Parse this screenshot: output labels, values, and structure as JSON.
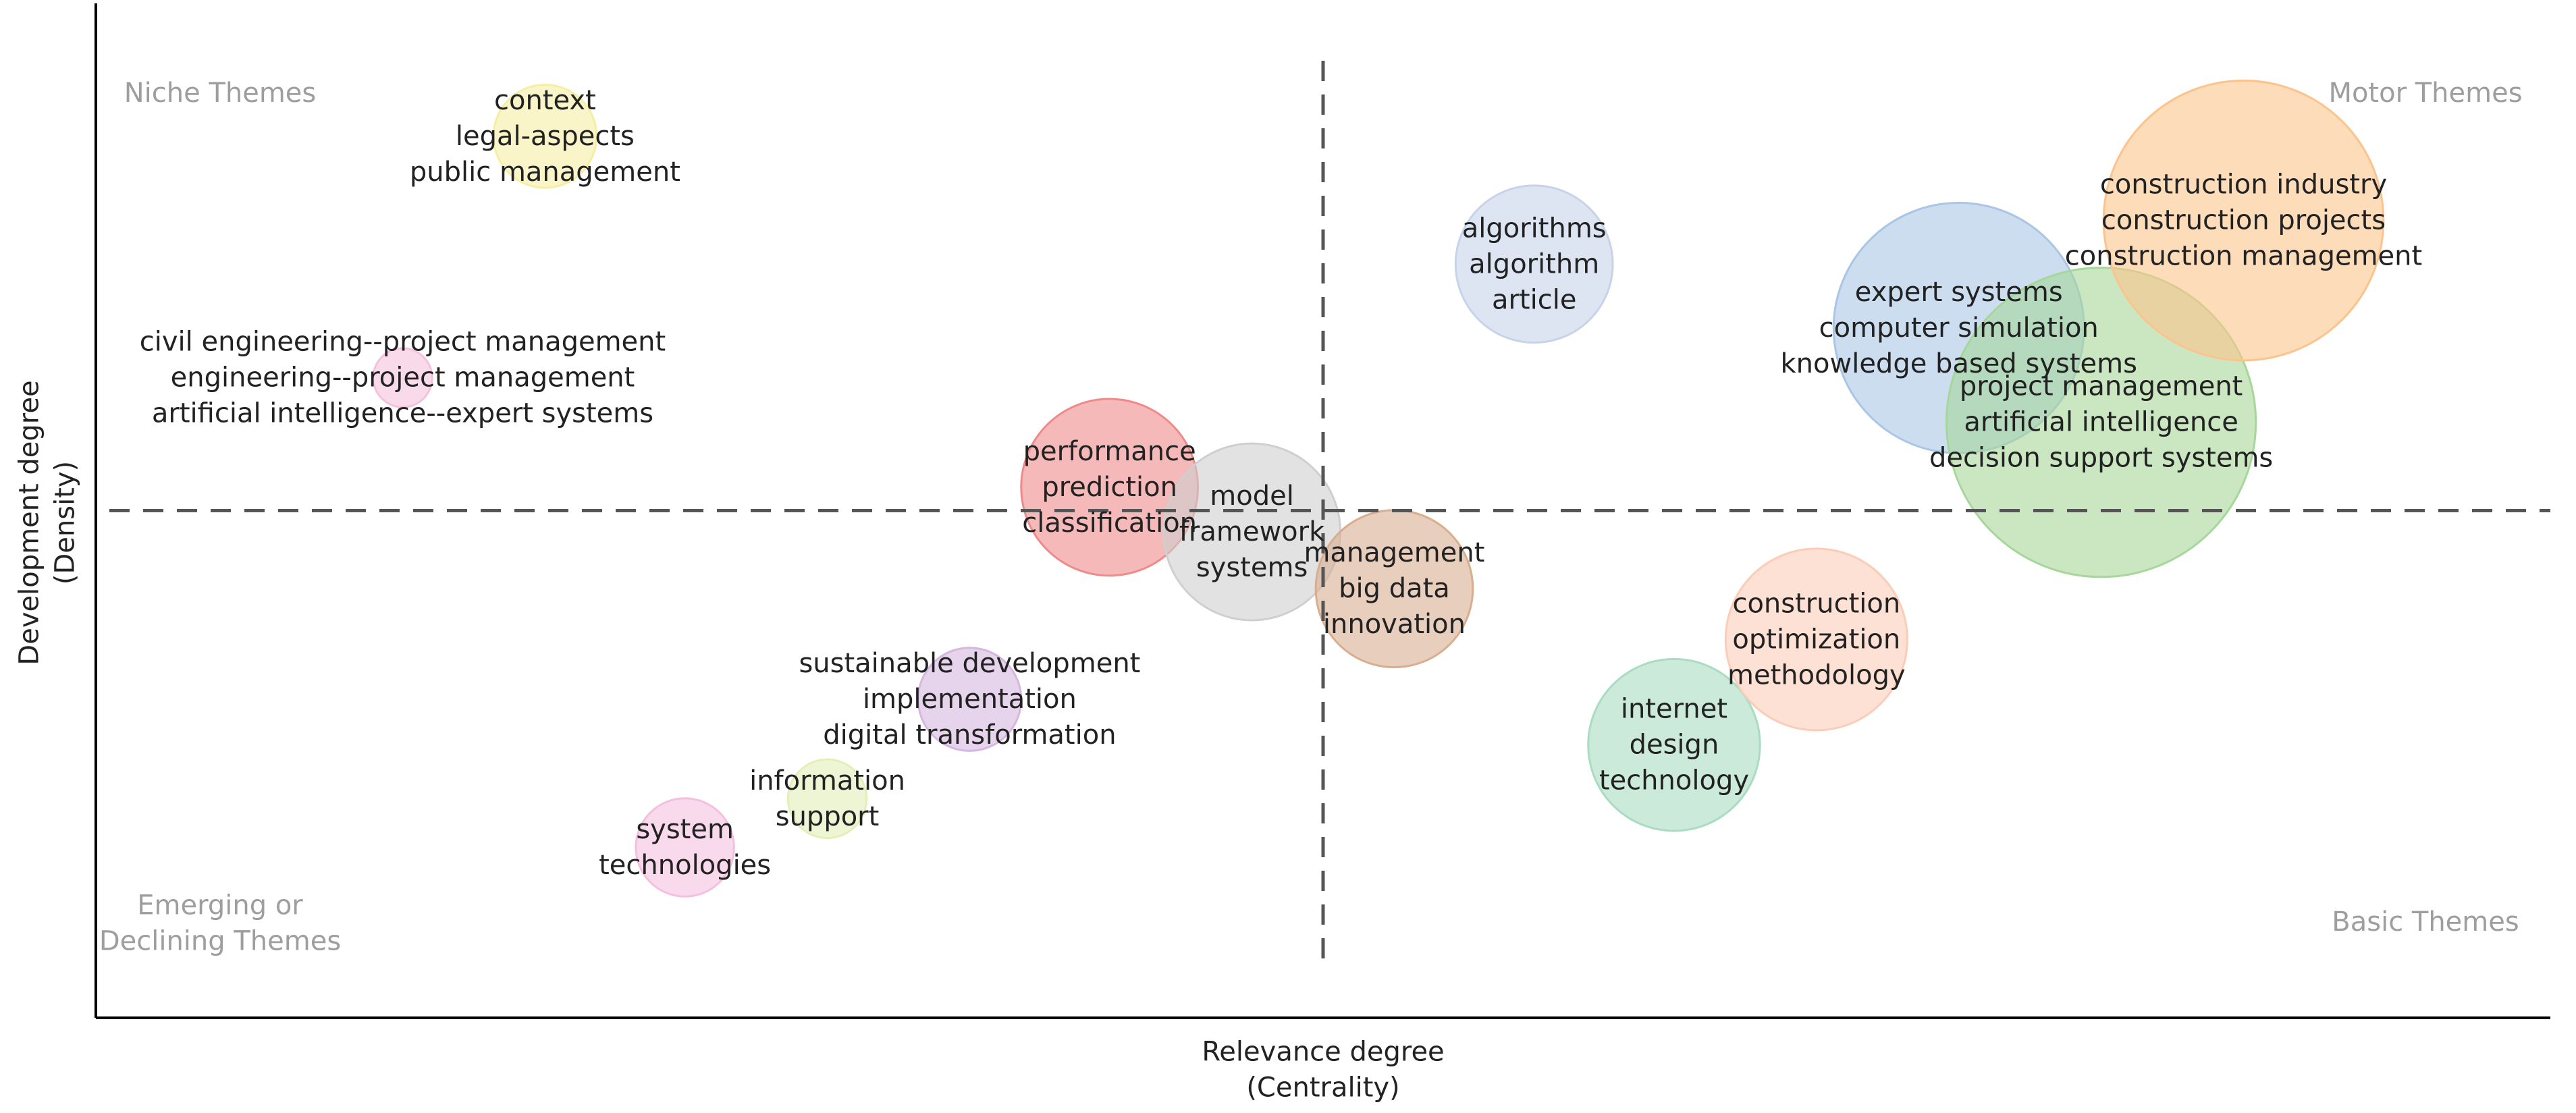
{
  "chart_data": {
    "type": "scatter",
    "variant": "thematic-map",
    "title": "",
    "xlabel": [
      "Relevance degree",
      "(Centrality)"
    ],
    "ylabel": [
      "Development degree",
      "(Density)"
    ],
    "xlim": [
      0,
      100
    ],
    "ylim": [
      0,
      100
    ],
    "center": {
      "x": 50,
      "y": 50
    },
    "quadrant_labels": {
      "top_left": [
        "Niche Themes"
      ],
      "top_right": [
        "Motor Themes"
      ],
      "bottom_left": [
        "Emerging or",
        "Declining Themes"
      ],
      "bottom_right": [
        "Basic Themes"
      ]
    },
    "clusters": [
      {
        "labels": [
          "context",
          "legal-aspects",
          "public management"
        ],
        "x": 18.3,
        "y": 86.9,
        "size": 2.1,
        "color": "#f5eea3"
      },
      {
        "labels": [
          "civil engineering--project management",
          "engineering--project management",
          "artificial intelligence--expert systems"
        ],
        "x": 12.5,
        "y": 63.1,
        "size": 1.2,
        "color": "#f4c2dd"
      },
      {
        "labels": [
          "performance",
          "prediction",
          "classification"
        ],
        "x": 41.3,
        "y": 52.3,
        "size": 3.6,
        "color": "#ef8a8a"
      },
      {
        "labels": [
          "model",
          "framework",
          "systems"
        ],
        "x": 47.1,
        "y": 47.9,
        "size": 3.6,
        "color": "#cfcfcf"
      },
      {
        "labels": [
          "management",
          "big data",
          "innovation"
        ],
        "x": 52.9,
        "y": 42.3,
        "size": 3.2,
        "color": "#d9ae8f"
      },
      {
        "labels": [
          "algorithms",
          "algorithm",
          "article"
        ],
        "x": 58.6,
        "y": 74.3,
        "size": 3.2,
        "color": "#c8d3ea"
      },
      {
        "labels": [
          "sustainable development",
          "implementation",
          "digital transformation"
        ],
        "x": 35.6,
        "y": 31.4,
        "size": 2.1,
        "color": "#d6b7e0"
      },
      {
        "labels": [
          "information",
          "support"
        ],
        "x": 29.8,
        "y": 21.6,
        "size": 1.6,
        "color": "#e2efb9"
      },
      {
        "labels": [
          "system",
          "technologies"
        ],
        "x": 24.0,
        "y": 16.8,
        "size": 2.0,
        "color": "#f5bfdf"
      },
      {
        "labels": [
          "internet",
          "design",
          "technology"
        ],
        "x": 64.3,
        "y": 26.9,
        "size": 3.5,
        "color": "#a9dcc2"
      },
      {
        "labels": [
          "construction",
          "optimization",
          "methodology"
        ],
        "x": 70.1,
        "y": 37.3,
        "size": 3.7,
        "color": "#fbcdb8"
      },
      {
        "labels": [
          "expert systems",
          "computer simulation",
          "knowledge based systems"
        ],
        "x": 75.9,
        "y": 68.0,
        "size": 5.1,
        "color": "#a9c6e4"
      },
      {
        "labels": [
          "project management",
          "artificial intelligence",
          "decision support systems"
        ],
        "x": 81.7,
        "y": 58.7,
        "size": 6.3,
        "color": "#a6d79a"
      },
      {
        "labels": [
          "construction industry",
          "construction projects",
          "construction management"
        ],
        "x": 87.5,
        "y": 78.6,
        "size": 5.7,
        "color": "#fcc48c"
      }
    ]
  }
}
